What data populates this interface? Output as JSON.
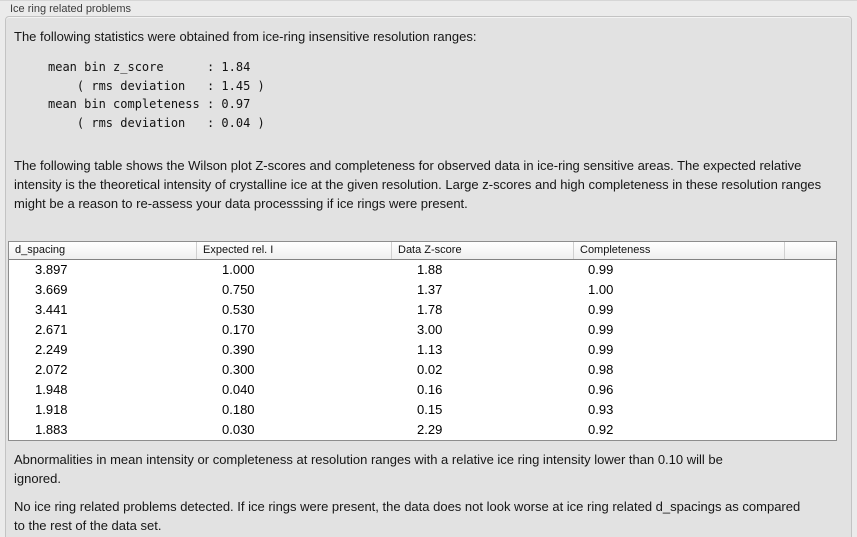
{
  "panel": {
    "title": "Ice ring related problems"
  },
  "intro_text": "The following statistics were obtained from ice-ring insensitive resolution ranges:",
  "stats_block": "mean bin z_score      : 1.84\n    ( rms deviation   : 1.45 )\nmean bin completeness : 0.97\n    ( rms deviation   : 0.04 )",
  "stats": {
    "mean_bin_z_score": "1.84",
    "z_score_rms_deviation": "1.45",
    "mean_bin_completeness": "0.97",
    "completeness_rms_deviation": "0.04"
  },
  "table_description": "The following table shows the Wilson plot Z-scores and completeness for observed data in ice-ring sensitive areas. The expected relative intensity is the theoretical intensity of crystalline ice at the given resolution. Large z-scores and high completeness in these resolution ranges might be a reason to re-assess your data processsing if ice rings were present.",
  "table": {
    "columns": [
      "d_spacing",
      "Expected rel. I",
      "Data Z-score",
      "Completeness",
      ""
    ],
    "rows": [
      [
        "3.897",
        "1.000",
        "1.88",
        "0.99"
      ],
      [
        "3.669",
        "0.750",
        "1.37",
        "1.00"
      ],
      [
        "3.441",
        "0.530",
        "1.78",
        "0.99"
      ],
      [
        "2.671",
        "0.170",
        "3.00",
        "0.99"
      ],
      [
        "2.249",
        "0.390",
        "1.13",
        "0.99"
      ],
      [
        "2.072",
        "0.300",
        "0.02",
        "0.98"
      ],
      [
        "1.948",
        "0.040",
        "0.16",
        "0.96"
      ],
      [
        "1.918",
        "0.180",
        "0.15",
        "0.93"
      ],
      [
        "1.883",
        "0.030",
        "2.29",
        "0.92"
      ]
    ]
  },
  "ignore_note": "Abnormalities in mean intensity or completeness at resolution ranges with a relative ice ring intensity lower than 0.10 will be ignored.",
  "conclusion": "No ice ring related problems detected. If ice rings were present, the data does not look worse at ice ring related d_spacings as compared to the rest of the data set."
}
